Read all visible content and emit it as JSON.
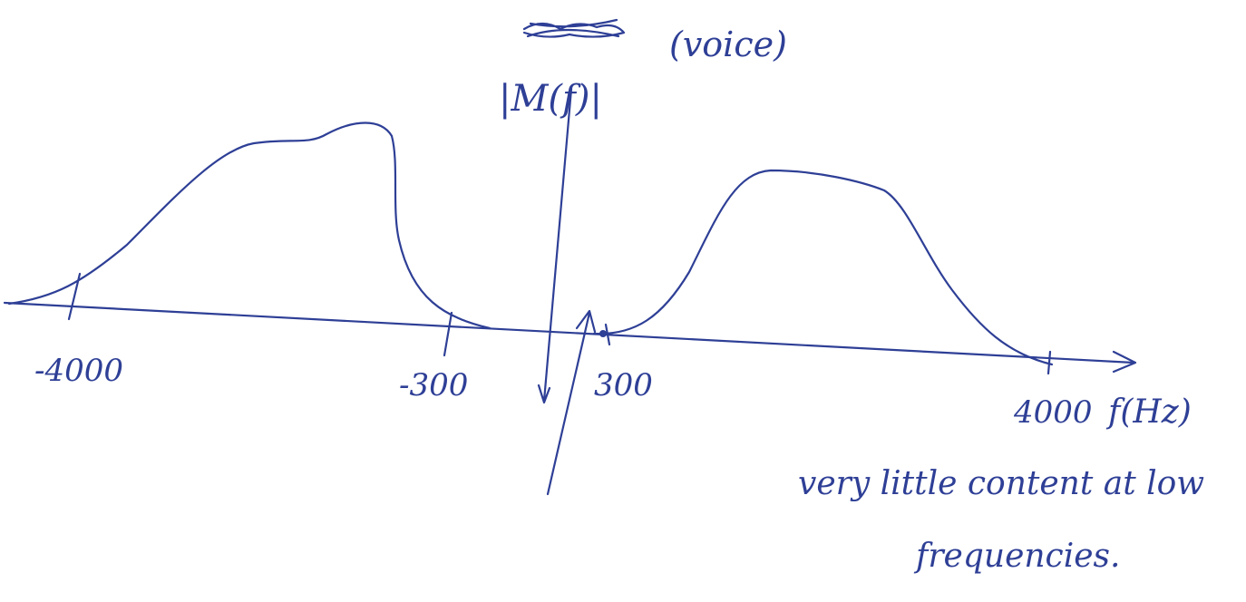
{
  "title": {
    "symbol": "|M(f)|",
    "qualifier": "(voice)"
  },
  "axis": {
    "ticks": [
      "-4000",
      "-300",
      "300",
      "4000"
    ],
    "label": "f(Hz)"
  },
  "note": {
    "lines": [
      "very little content at low",
      "frequencies."
    ]
  }
}
